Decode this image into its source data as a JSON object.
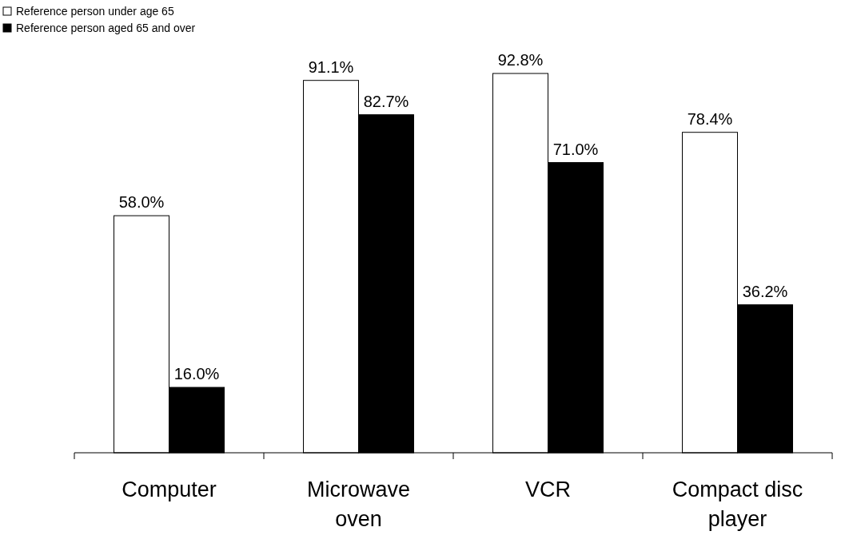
{
  "chart_data": {
    "type": "bar",
    "categories": [
      "Computer",
      "Microwave oven",
      "VCR",
      "Compact disc player"
    ],
    "series": [
      {
        "name": "Reference person under age 65",
        "color": "#ffffff",
        "values": [
          58.0,
          91.1,
          92.8,
          78.4
        ],
        "value_labels": [
          "58.0%",
          "91.1%",
          "92.8%",
          "78.4%"
        ]
      },
      {
        "name": "Reference person aged 65 and over",
        "color": "#000000",
        "values": [
          16.0,
          82.7,
          71.0,
          36.2
        ],
        "value_labels": [
          "16.0%",
          "82.7%",
          "71.0%",
          "36.2%"
        ]
      }
    ],
    "legend": "top left"
  }
}
